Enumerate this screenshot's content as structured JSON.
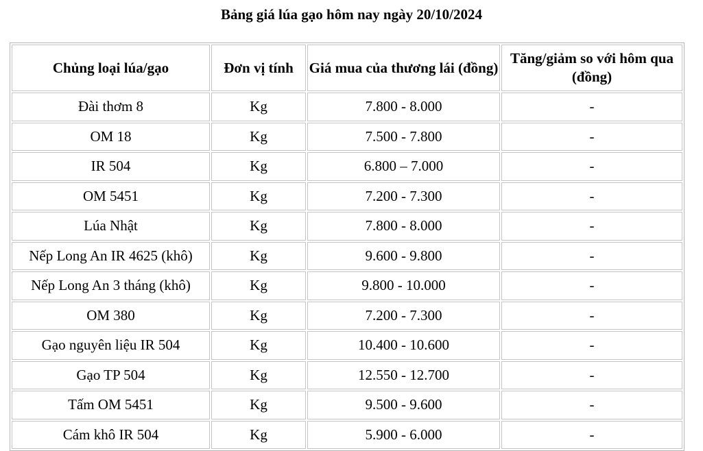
{
  "title": "Bảng giá lúa gạo hôm nay ngày 20/10/2024",
  "table": {
    "headers": [
      "Chủng loại lúa/gạo",
      "Đơn vị tính",
      "Giá mua của thương lái (đồng)",
      "Tăng/giảm so với hôm qua (đồng)"
    ],
    "rows": [
      [
        "Đài thơm 8",
        "Kg",
        "7.800 - 8.000",
        "-"
      ],
      [
        "OM 18",
        "Kg",
        "7.500 - 7.800",
        "-"
      ],
      [
        "IR 504",
        "Kg",
        "6.800 – 7.000",
        "-"
      ],
      [
        "OM 5451",
        "Kg",
        "7.200 - 7.300",
        "-"
      ],
      [
        "Lúa Nhật",
        "Kg",
        "7.800 - 8.000",
        "-"
      ],
      [
        "Nếp Long An IR 4625 (khô)",
        "Kg",
        "9.600 - 9.800",
        "-"
      ],
      [
        "Nếp Long An 3 tháng (khô)",
        "Kg",
        "9.800 - 10.000",
        "-"
      ],
      [
        "OM 380",
        "Kg",
        "7.200 - 7.300",
        "-"
      ],
      [
        "Gạo nguyên liệu IR 504",
        "Kg",
        "10.400 - 10.600",
        "-"
      ],
      [
        "Gạo TP 504",
        "Kg",
        "12.550 - 12.700",
        "-"
      ],
      [
        "Tấm OM 5451",
        "Kg",
        "9.500 - 9.600",
        "-"
      ],
      [
        "Cám khô IR 504",
        "Kg",
        "5.900 - 6.000",
        "-"
      ]
    ]
  }
}
